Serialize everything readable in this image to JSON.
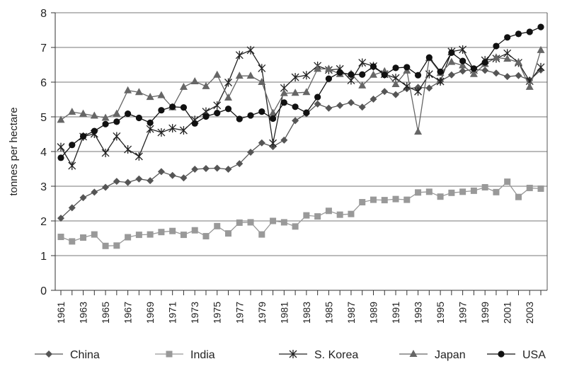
{
  "chart_data": {
    "type": "line",
    "title": "",
    "xlabel": "",
    "ylabel": "tonnes per hectare",
    "ylim": [
      0,
      8
    ],
    "yticks": [
      "0",
      "1",
      "2",
      "3",
      "4",
      "5",
      "6",
      "7",
      "8"
    ],
    "xlim": [
      1961,
      2004
    ],
    "xtick_labels": [
      "1961",
      "1963",
      "1965",
      "1967",
      "1969",
      "1971",
      "1973",
      "1975",
      "1977",
      "1979",
      "1981",
      "1983",
      "1985",
      "1987",
      "1989",
      "1991",
      "1993",
      "1995",
      "1997",
      "1999",
      "2001",
      "2003"
    ],
    "grid": "horizontal",
    "legend_position": "bottom",
    "x": [
      1961,
      1962,
      1963,
      1964,
      1965,
      1966,
      1967,
      1968,
      1969,
      1970,
      1971,
      1972,
      1973,
      1974,
      1975,
      1976,
      1977,
      1978,
      1979,
      1980,
      1981,
      1982,
      1983,
      1984,
      1985,
      1986,
      1987,
      1988,
      1989,
      1990,
      1991,
      1992,
      1993,
      1994,
      1995,
      1996,
      1997,
      1998,
      1999,
      2000,
      2001,
      2002,
      2003,
      2004
    ],
    "series": [
      {
        "name": "China",
        "marker": "diamond",
        "color": "#555555",
        "values": [
          2.08,
          2.38,
          2.67,
          2.83,
          2.97,
          3.14,
          3.11,
          3.21,
          3.16,
          3.42,
          3.31,
          3.24,
          3.49,
          3.51,
          3.52,
          3.49,
          3.65,
          3.98,
          4.25,
          4.14,
          4.33,
          4.89,
          5.09,
          5.37,
          5.25,
          5.33,
          5.41,
          5.28,
          5.51,
          5.73,
          5.64,
          5.81,
          5.85,
          5.83,
          6.03,
          6.21,
          6.32,
          6.37,
          6.34,
          6.26,
          6.16,
          6.19,
          6.06,
          6.35
        ]
      },
      {
        "name": "India",
        "marker": "square",
        "color": "#999999",
        "values": [
          1.54,
          1.41,
          1.52,
          1.61,
          1.28,
          1.29,
          1.53,
          1.6,
          1.61,
          1.68,
          1.71,
          1.6,
          1.73,
          1.56,
          1.85,
          1.64,
          1.95,
          1.96,
          1.61,
          2.0,
          1.96,
          1.84,
          2.16,
          2.13,
          2.29,
          2.18,
          2.2,
          2.54,
          2.61,
          2.6,
          2.63,
          2.61,
          2.82,
          2.84,
          2.7,
          2.81,
          2.84,
          2.87,
          2.97,
          2.83,
          3.13,
          2.69,
          2.95,
          2.93
        ]
      },
      {
        "name": "S. Korea",
        "marker": "asterisk",
        "color": "#222222",
        "values": [
          4.13,
          3.59,
          4.43,
          4.51,
          3.96,
          4.44,
          4.06,
          3.86,
          4.65,
          4.55,
          4.67,
          4.61,
          4.91,
          5.15,
          5.33,
          5.99,
          6.78,
          6.92,
          6.4,
          4.24,
          5.83,
          6.14,
          6.2,
          6.47,
          6.35,
          6.38,
          6.05,
          6.56,
          6.46,
          6.23,
          6.12,
          5.88,
          5.73,
          6.23,
          6.02,
          6.88,
          6.94,
          6.35,
          6.63,
          6.68,
          6.83,
          6.56,
          6.03,
          6.43
        ]
      },
      {
        "name": "Japan",
        "marker": "triangle",
        "color": "#666666",
        "values": [
          4.91,
          5.14,
          5.09,
          5.03,
          4.97,
          5.09,
          5.76,
          5.71,
          5.57,
          5.62,
          5.27,
          5.86,
          6.02,
          5.88,
          6.21,
          5.55,
          6.18,
          6.18,
          6.0,
          5.11,
          5.68,
          5.69,
          5.71,
          6.38,
          6.38,
          6.23,
          6.24,
          5.9,
          6.21,
          6.31,
          5.94,
          6.33,
          4.57,
          6.69,
          6.26,
          6.58,
          6.48,
          6.23,
          6.52,
          6.71,
          6.67,
          6.57,
          5.86,
          6.92
        ]
      },
      {
        "name": "USA",
        "marker": "circle",
        "color": "#111111",
        "values": [
          3.82,
          4.19,
          4.44,
          4.59,
          4.79,
          4.86,
          5.09,
          4.97,
          4.83,
          5.19,
          5.29,
          5.27,
          4.81,
          5.01,
          5.11,
          5.23,
          4.94,
          5.04,
          5.15,
          4.95,
          5.41,
          5.29,
          5.12,
          5.57,
          6.1,
          6.28,
          6.22,
          6.22,
          6.45,
          6.21,
          6.41,
          6.43,
          6.2,
          6.71,
          6.3,
          6.85,
          6.61,
          6.39,
          6.57,
          7.04,
          7.29,
          7.39,
          7.45,
          7.59
        ]
      }
    ]
  }
}
